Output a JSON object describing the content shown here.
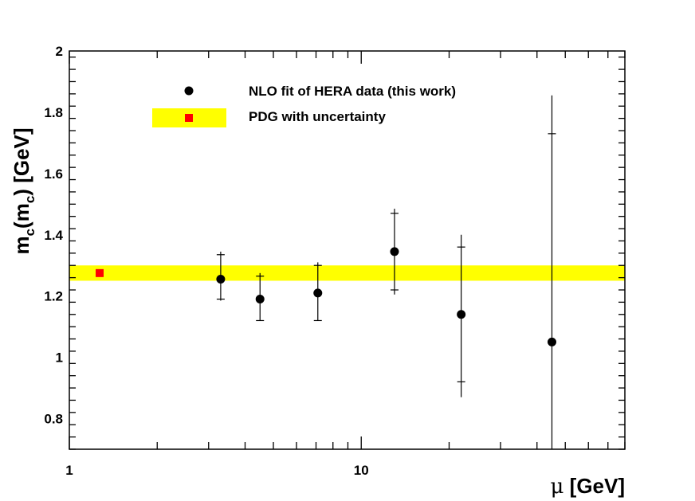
{
  "chart_data": {
    "type": "scatter",
    "title": "",
    "xlabel": {
      "symbol": "μ",
      "unit": "[GeV]"
    },
    "ylabel": {
      "m": "m",
      "sub1": "c",
      "paren_open": "(m",
      "sub2": "c",
      "paren_close": ")",
      "unit": "[GeV]"
    },
    "xscale": "log",
    "xlim": [
      1,
      80
    ],
    "ylim": [
      0.7,
      2.0
    ],
    "x_tick_labels": [
      {
        "value": 1,
        "label": "1"
      },
      {
        "value": 10,
        "label": "10"
      }
    ],
    "y_tick_labels": [
      {
        "value": 0.8,
        "label": "0.8"
      },
      {
        "value": 1.0,
        "label": "1"
      },
      {
        "value": 1.2,
        "label": "1.2"
      },
      {
        "value": 1.4,
        "label": "1.4"
      },
      {
        "value": 1.6,
        "label": "1.6"
      },
      {
        "value": 1.8,
        "label": "1.8"
      },
      {
        "value": 2.0,
        "label": "2"
      }
    ],
    "legend": {
      "placement": "top-left",
      "entries": [
        {
          "label": "NLO fit of HERA data (this work)",
          "marker": "circle"
        },
        {
          "label": "PDG with uncertainty",
          "marker": "square-on-band"
        }
      ]
    },
    "series": [
      {
        "name": "NLO fit of HERA data (this work)",
        "color": "#000000",
        "points": [
          {
            "x": 3.3,
            "y": 1.255,
            "inner": [
              1.19,
              1.335
            ],
            "outer": [
              1.185,
              1.345
            ]
          },
          {
            "x": 4.5,
            "y": 1.19,
            "inner": [
              1.12,
              1.265
            ],
            "outer": [
              1.12,
              1.275
            ]
          },
          {
            "x": 7.1,
            "y": 1.21,
            "inner": [
              1.12,
              1.3
            ],
            "outer": [
              1.12,
              1.31
            ]
          },
          {
            "x": 13.0,
            "y": 1.345,
            "inner": [
              1.22,
              1.47
            ],
            "outer": [
              1.205,
              1.485
            ]
          },
          {
            "x": 22.0,
            "y": 1.14,
            "inner": [
              0.92,
              1.36
            ],
            "outer": [
              0.87,
              1.4
            ]
          },
          {
            "x": 45.0,
            "y": 1.05,
            "inner": [
              0.7,
              1.73
            ],
            "outer": [
              0.7,
              1.855
            ]
          }
        ]
      },
      {
        "name": "PDG with uncertainty",
        "band_color": "#ffff00",
        "marker_color": "#ff0000",
        "point": {
          "x": 1.27,
          "y": 1.275
        },
        "band": [
          1.25,
          1.3
        ]
      }
    ]
  }
}
